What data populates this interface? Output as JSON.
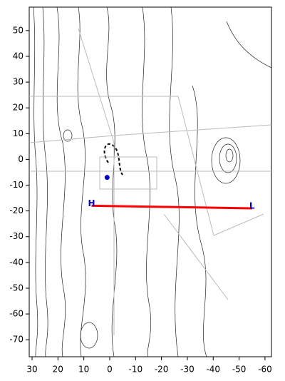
{
  "chart_data": {
    "type": "line",
    "xlim": [
      31.1,
      -62.5
    ],
    "ylim": [
      -76.6,
      59.1
    ],
    "xticks": [
      30,
      20,
      10,
      0,
      -10,
      -20,
      -30,
      -40,
      -50,
      -60
    ],
    "yticks": [
      50,
      40,
      30,
      20,
      10,
      0,
      -10,
      -20,
      -30,
      -40,
      -50,
      -60,
      -70
    ],
    "series": [
      {
        "color": "#ff0000",
        "x": [
          7,
          -55
        ],
        "y": [
          -18,
          -19
        ],
        "labels": [
          "H",
          "L"
        ],
        "label_color": "#0000cc"
      },
      {
        "color": "#0000cc",
        "x": [
          1
        ],
        "y": [
          -7
        ]
      }
    ]
  }
}
